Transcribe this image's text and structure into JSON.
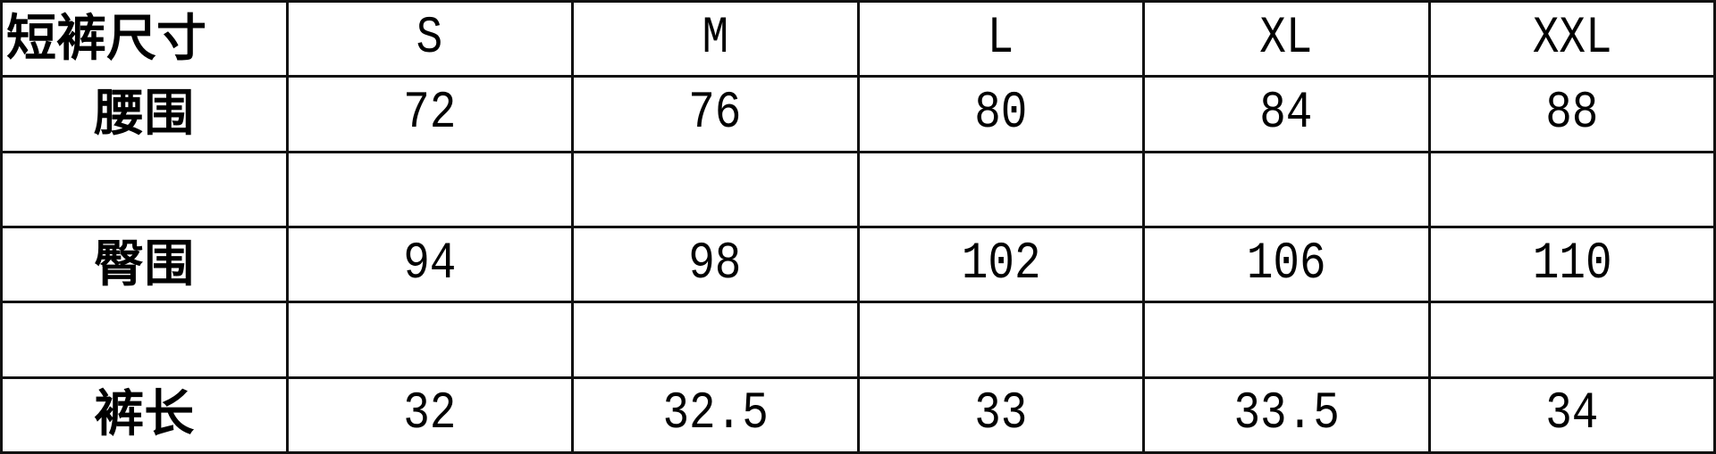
{
  "table": {
    "header": [
      "短裤尺寸",
      "S",
      "M",
      "L",
      "XL",
      "XXL"
    ],
    "rows": [
      {
        "label": "腰围",
        "values": [
          "72",
          "76",
          "80",
          "84",
          "88"
        ]
      },
      {
        "label": "",
        "values": [
          "",
          "",
          "",
          "",
          ""
        ]
      },
      {
        "label": "臀围",
        "values": [
          "94",
          "98",
          "102",
          "106",
          "110"
        ]
      },
      {
        "label": "",
        "values": [
          "",
          "",
          "",
          "",
          ""
        ]
      },
      {
        "label": "裤长",
        "values": [
          "32",
          "32.5",
          "33",
          "33.5",
          "34"
        ]
      }
    ]
  }
}
